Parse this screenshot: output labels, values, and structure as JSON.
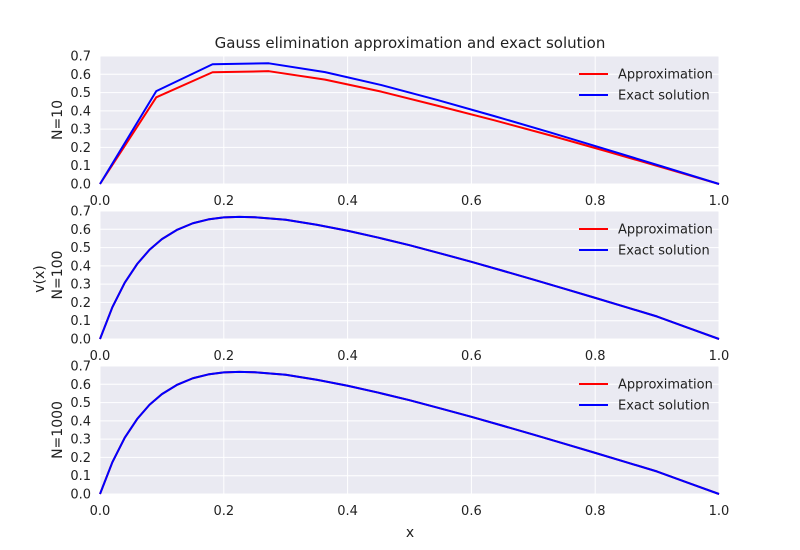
{
  "chart_data": {
    "type": "line",
    "title": "Gauss elimination approximation and exact solution",
    "xlabel": "x",
    "ylabel": "v(x)",
    "colors": {
      "background": "#eaeaf2",
      "grid": "#ffffff",
      "approximation": "#ff0000",
      "exact": "#0000ff"
    },
    "grid": true,
    "legend_position": "top-right",
    "panels": [
      {
        "label": "N=10",
        "xlim": [
          0,
          1
        ],
        "ylim": [
          0,
          0.7
        ],
        "xticks": [
          "0.0",
          "0.2",
          "0.4",
          "0.6",
          "0.8",
          "1.0"
        ],
        "yticks": [
          "0.0",
          "0.1",
          "0.2",
          "0.3",
          "0.4",
          "0.5",
          "0.6",
          "0.7"
        ],
        "series": [
          {
            "name": "Approximation",
            "x": [
              0,
              0.0909,
              0.1818,
              0.2727,
              0.3636,
              0.4545,
              0.5455,
              0.6364,
              0.7273,
              0.8182,
              0.9091,
              1.0
            ],
            "y": [
              0,
              0.474,
              0.611,
              0.617,
              0.571,
              0.505,
              0.428,
              0.349,
              0.266,
              0.179,
              0.09,
              0
            ]
          },
          {
            "name": "Exact solution",
            "x": [
              0,
              0.0909,
              0.1818,
              0.2727,
              0.3636,
              0.4545,
              0.5455,
              0.6364,
              0.7273,
              0.8182,
              0.9091,
              1.0
            ],
            "y": [
              0,
              0.508,
              0.655,
              0.66,
              0.612,
              0.541,
              0.459,
              0.372,
              0.282,
              0.189,
              0.095,
              0
            ]
          }
        ]
      },
      {
        "label": "N=100",
        "xlim": [
          0,
          1
        ],
        "ylim": [
          0,
          0.7
        ],
        "xticks": [
          "0.0",
          "0.2",
          "0.4",
          "0.6",
          "0.8",
          "1.0"
        ],
        "yticks": [
          "0.0",
          "0.1",
          "0.2",
          "0.3",
          "0.4",
          "0.5",
          "0.6",
          "0.7"
        ],
        "series": [
          {
            "name": "Approximation",
            "x": [
              0,
              0.02,
              0.04,
              0.06,
              0.08,
              0.1,
              0.125,
              0.15,
              0.175,
              0.2,
              0.225,
              0.25,
              0.3,
              0.35,
              0.4,
              0.45,
              0.5,
              0.55,
              0.6,
              0.65,
              0.7,
              0.75,
              0.8,
              0.85,
              0.9,
              0.95,
              1.0
            ],
            "y": [
              0,
              0.174,
              0.308,
              0.41,
              0.488,
              0.546,
              0.598,
              0.633,
              0.654,
              0.665,
              0.668,
              0.666,
              0.652,
              0.625,
              0.592,
              0.554,
              0.513,
              0.468,
              0.422,
              0.374,
              0.325,
              0.275,
              0.225,
              0.174,
              0.123,
              0.061,
              0
            ]
          },
          {
            "name": "Exact solution",
            "x": [
              0,
              0.02,
              0.04,
              0.06,
              0.08,
              0.1,
              0.125,
              0.15,
              0.175,
              0.2,
              0.225,
              0.25,
              0.3,
              0.35,
              0.4,
              0.45,
              0.5,
              0.55,
              0.6,
              0.65,
              0.7,
              0.75,
              0.8,
              0.85,
              0.9,
              0.95,
              1.0
            ],
            "y": [
              0,
              0.174,
              0.308,
              0.41,
              0.488,
              0.546,
              0.598,
              0.633,
              0.654,
              0.665,
              0.668,
              0.666,
              0.652,
              0.625,
              0.592,
              0.554,
              0.513,
              0.468,
              0.422,
              0.374,
              0.325,
              0.275,
              0.225,
              0.174,
              0.123,
              0.061,
              0
            ]
          }
        ]
      },
      {
        "label": "N=1000",
        "xlim": [
          0,
          1
        ],
        "ylim": [
          0,
          0.7
        ],
        "xticks": [
          "0.0",
          "0.2",
          "0.4",
          "0.6",
          "0.8",
          "1.0"
        ],
        "yticks": [
          "0.0",
          "0.1",
          "0.2",
          "0.3",
          "0.4",
          "0.5",
          "0.6",
          "0.7"
        ],
        "series": [
          {
            "name": "Approximation",
            "x": [
              0,
              0.02,
              0.04,
              0.06,
              0.08,
              0.1,
              0.125,
              0.15,
              0.175,
              0.2,
              0.225,
              0.25,
              0.3,
              0.35,
              0.4,
              0.45,
              0.5,
              0.55,
              0.6,
              0.65,
              0.7,
              0.75,
              0.8,
              0.85,
              0.9,
              0.95,
              1.0
            ],
            "y": [
              0,
              0.174,
              0.308,
              0.41,
              0.488,
              0.546,
              0.598,
              0.633,
              0.654,
              0.665,
              0.668,
              0.666,
              0.652,
              0.625,
              0.592,
              0.554,
              0.513,
              0.468,
              0.422,
              0.374,
              0.325,
              0.275,
              0.225,
              0.174,
              0.123,
              0.061,
              0
            ]
          },
          {
            "name": "Exact solution",
            "x": [
              0,
              0.02,
              0.04,
              0.06,
              0.08,
              0.1,
              0.125,
              0.15,
              0.175,
              0.2,
              0.225,
              0.25,
              0.3,
              0.35,
              0.4,
              0.45,
              0.5,
              0.55,
              0.6,
              0.65,
              0.7,
              0.75,
              0.8,
              0.85,
              0.9,
              0.95,
              1.0
            ],
            "y": [
              0,
              0.174,
              0.308,
              0.41,
              0.488,
              0.546,
              0.598,
              0.633,
              0.654,
              0.665,
              0.668,
              0.666,
              0.652,
              0.625,
              0.592,
              0.554,
              0.513,
              0.468,
              0.422,
              0.374,
              0.325,
              0.275,
              0.225,
              0.174,
              0.123,
              0.061,
              0
            ]
          }
        ]
      }
    ]
  }
}
